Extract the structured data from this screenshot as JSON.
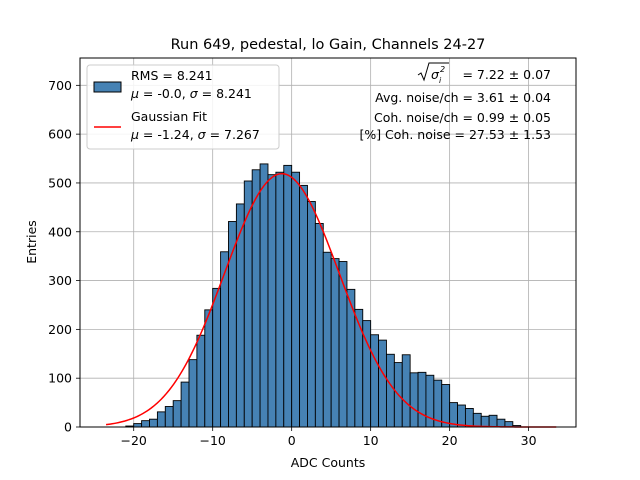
{
  "chart_data": {
    "type": "bar",
    "title": "Run 649, pedestal, lo Gain, Channels 24-27",
    "xlabel": "ADC Counts",
    "ylabel": "Entries",
    "xlim": [
      -26.8,
      36.0
    ],
    "ylim": [
      0,
      756
    ],
    "grid": true,
    "x_ticks": [
      -20,
      -10,
      0,
      10,
      20,
      30
    ],
    "y_ticks": [
      0,
      100,
      200,
      300,
      400,
      500,
      600,
      700
    ],
    "bin_width": 1,
    "bin_start": -21,
    "counts": [
      2,
      7,
      13,
      16,
      31,
      42,
      54,
      92,
      138,
      188,
      240,
      284,
      359,
      421,
      457,
      504,
      527,
      539,
      517,
      522,
      536,
      522,
      495,
      462,
      417,
      358,
      345,
      339,
      282,
      241,
      218,
      189,
      178,
      149,
      132,
      148,
      111,
      112,
      106,
      96,
      87,
      50,
      45,
      38,
      28,
      22,
      24,
      16,
      11,
      3,
      0,
      0,
      0,
      0
    ],
    "fit": {
      "mu": -1.24,
      "sigma": 7.267,
      "amplitude": 519,
      "x_range": [
        -23.5,
        33.5
      ]
    },
    "legend": {
      "position": "top-left",
      "entries": [
        {
          "name": "hist",
          "line1": "RMS = 8.241",
          "mu_val": "-0.0",
          "sigma_val": "8.241",
          "color": "#4682b4"
        },
        {
          "name": "fit",
          "line1": "Gaussian Fit",
          "mu_val": "-1.24",
          "sigma_val": "7.267",
          "color": "#ff0000"
        }
      ]
    },
    "annotations": {
      "sigma_total": "= 7.22 ± 0.07",
      "avg_noise": "Avg. noise/ch = 3.61 ± 0.04",
      "coh_noise": "Coh. noise/ch = 0.99 ± 0.05",
      "pct_coh": "[%] Coh. noise = 27.53 ± 1.53"
    },
    "colors": {
      "bar": "#4682b4",
      "fit": "#ff0000",
      "grid": "#b0b0b0"
    }
  }
}
